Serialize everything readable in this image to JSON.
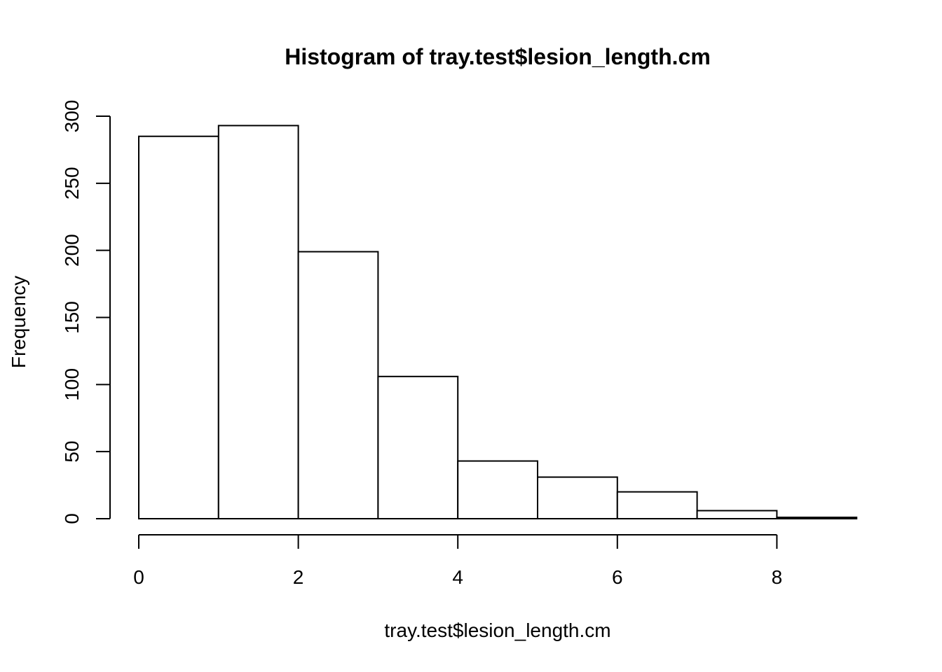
{
  "chart_data": {
    "type": "bar",
    "title": "Histogram of tray.test$lesion_length.cm",
    "xlabel": "tray.test$lesion_length.cm",
    "ylabel": "Frequency",
    "bins": [
      {
        "x0": 0,
        "x1": 1,
        "count": 285
      },
      {
        "x0": 1,
        "x1": 2,
        "count": 293
      },
      {
        "x0": 2,
        "x1": 3,
        "count": 199
      },
      {
        "x0": 3,
        "x1": 4,
        "count": 106
      },
      {
        "x0": 4,
        "x1": 5,
        "count": 43
      },
      {
        "x0": 5,
        "x1": 6,
        "count": 31
      },
      {
        "x0": 6,
        "x1": 7,
        "count": 20
      },
      {
        "x0": 7,
        "x1": 8,
        "count": 6
      },
      {
        "x0": 8,
        "x1": 9,
        "count": 1
      }
    ],
    "x_ticks": [
      0,
      2,
      4,
      6,
      8
    ],
    "y_ticks": [
      0,
      50,
      100,
      150,
      200,
      250,
      300
    ],
    "x_axis_range": [
      0,
      8
    ],
    "y_axis_range": [
      0,
      300
    ],
    "xlim": [
      0,
      9
    ],
    "grid": false,
    "legend": "none",
    "colors": {
      "bar_fill": "#ffffff",
      "bar_stroke": "#000000"
    }
  }
}
